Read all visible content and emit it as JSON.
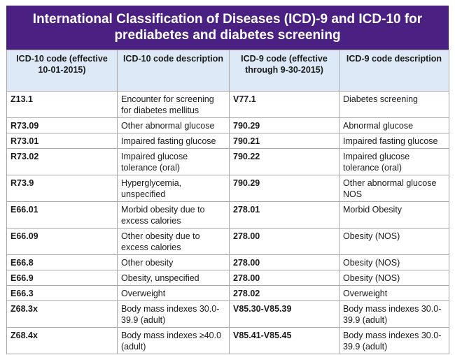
{
  "title": "International Classification of Diseases (ICD)-9 and ICD-10 for prediabetes and diabetes screening",
  "headers": [
    "ICD-10 code (effective 10-01-2015)",
    "ICD-10 code description",
    "ICD-9 code (effective through 9-30-2015)",
    "ICD-9 code description"
  ],
  "rows": [
    [
      "Z13.1",
      "Encounter for screening for diabetes mellitus",
      "V77.1",
      "Diabetes screening"
    ],
    [
      "R73.09",
      "Other abnormal glucose",
      "790.29",
      "Abnormal glucose"
    ],
    [
      "R73.01",
      "Impaired fasting glucose",
      "790.21",
      "Impaired fasting glucose"
    ],
    [
      "R73.02",
      "Impaired glucose tolerance (oral)",
      "790.22",
      "Impaired glucose tolerance (oral)"
    ],
    [
      "R73.9",
      "Hyperglycemia, unspecified",
      "790.29",
      "Other abnormal glucose NOS"
    ],
    [
      "E66.01",
      "Morbid obesity due to excess calories",
      "278.01",
      "Morbid Obesity"
    ],
    [
      "E66.09",
      "Other obesity due to excess calories",
      "278.00",
      "Obesity (NOS)"
    ],
    [
      "E66.8",
      "Other obesity",
      "278.00",
      "Obesity (NOS)"
    ],
    [
      "E66.9",
      "Obesity, unspecified",
      "278.00",
      "Obesity (NOS)"
    ],
    [
      "E66.3",
      "Overweight",
      "278.02",
      "Overweight"
    ],
    [
      "Z68.3x",
      "Body mass indexes 30.0-39.9 (adult)",
      "V85.30-V85.39",
      "Body mass indexes 30.0-39.9 (adult)"
    ],
    [
      "Z68.4x",
      "Body mass indexes ≥40.0 (adult)",
      "V85.41-V85.45",
      "Body mass indexes 30.0-39.9 (adult)"
    ]
  ],
  "colors": {
    "title_bg": "#4b2083",
    "header_bg": "#dde9f6",
    "border": "#a9a9a9"
  }
}
